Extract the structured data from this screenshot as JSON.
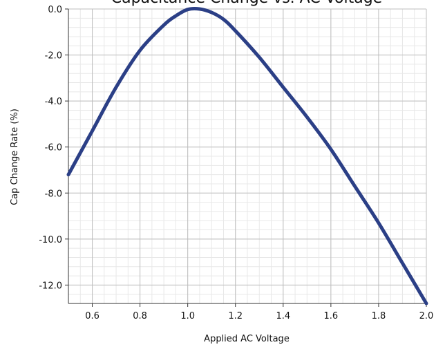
{
  "chart_data": {
    "type": "line",
    "title": "Capacitance Change vs. AC Voltage",
    "xlabel": "Applied AC Voltage",
    "ylabel": "Cap Change Rate (%)",
    "xlim": [
      0.5,
      2.0
    ],
    "ylim": [
      -12.8,
      0.0
    ],
    "xticks": [
      0.6,
      0.8,
      1.0,
      1.2,
      1.4,
      1.6,
      1.8,
      2.0
    ],
    "xtick_labels": [
      "0.6",
      "0.8",
      "1.0",
      "1.2",
      "1.4",
      "1.6",
      "1.8",
      "2.0"
    ],
    "yticks": [
      0.0,
      -2.0,
      -4.0,
      -6.0,
      -8.0,
      -10.0,
      -12.0
    ],
    "ytick_labels": [
      "0.0",
      "-2.0",
      "-4.0",
      "-6.0",
      "-8.0",
      "-10.0",
      "-12.0"
    ],
    "grid": true,
    "minor_grid": true,
    "series": [
      {
        "color": "#2b3f86",
        "x": [
          0.5,
          0.6,
          0.7,
          0.8,
          0.9,
          0.95,
          1.0,
          1.05,
          1.1,
          1.15,
          1.2,
          1.3,
          1.4,
          1.5,
          1.6,
          1.7,
          1.8,
          1.9,
          2.0
        ],
        "y": [
          -7.2,
          -5.3,
          -3.4,
          -1.8,
          -0.7,
          -0.3,
          -0.02,
          0.0,
          -0.15,
          -0.45,
          -0.95,
          -2.1,
          -3.4,
          -4.7,
          -6.1,
          -7.7,
          -9.3,
          -11.05,
          -12.8
        ]
      }
    ]
  }
}
